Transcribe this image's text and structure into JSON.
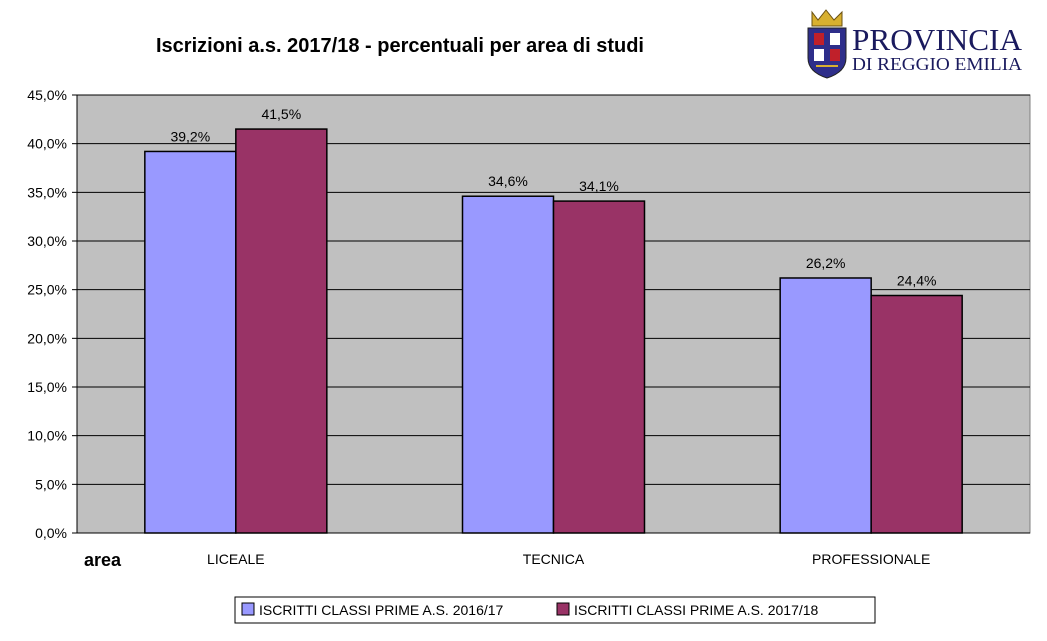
{
  "logo": {
    "line1": "PROVINCIA",
    "line2": "DI REGGIO EMILIA",
    "colors": {
      "text": "#1a1a5e",
      "shield_blue": "#2e2e8a",
      "shield_red": "#c0202a",
      "shield_gold": "#d8b030"
    }
  },
  "colors": {
    "plot_background": "#c0c0c0",
    "series_2016": "#9999ff",
    "series_2017": "#993366",
    "grid": "#000000"
  },
  "chart_data": {
    "type": "bar",
    "title": "Iscrizioni a.s. 2017/18 - percentuali per area di studi",
    "xlabel": "area",
    "ylabel": "",
    "categories": [
      "LICEALE",
      "TECNICA",
      "PROFESSIONALE"
    ],
    "series": [
      {
        "name": "ISCRITTI CLASSI PRIME A.S. 2016/17",
        "values": [
          39.2,
          34.6,
          26.2
        ],
        "labels": [
          "39,2%",
          "34,6%",
          "26,2%"
        ]
      },
      {
        "name": "ISCRITTI CLASSI PRIME A.S. 2017/18",
        "values": [
          41.5,
          34.1,
          24.4
        ],
        "labels": [
          "41,5%",
          "34,1%",
          "24,4%"
        ]
      }
    ],
    "ylim": [
      0,
      45
    ],
    "yticks": [
      0,
      5,
      10,
      15,
      20,
      25,
      30,
      35,
      40,
      45
    ],
    "ytick_labels": [
      "0,0%",
      "5,0%",
      "10,0%",
      "15,0%",
      "20,0%",
      "25,0%",
      "30,0%",
      "35,0%",
      "40,0%",
      "45,0%"
    ],
    "grid": true,
    "legend_position": "bottom"
  }
}
